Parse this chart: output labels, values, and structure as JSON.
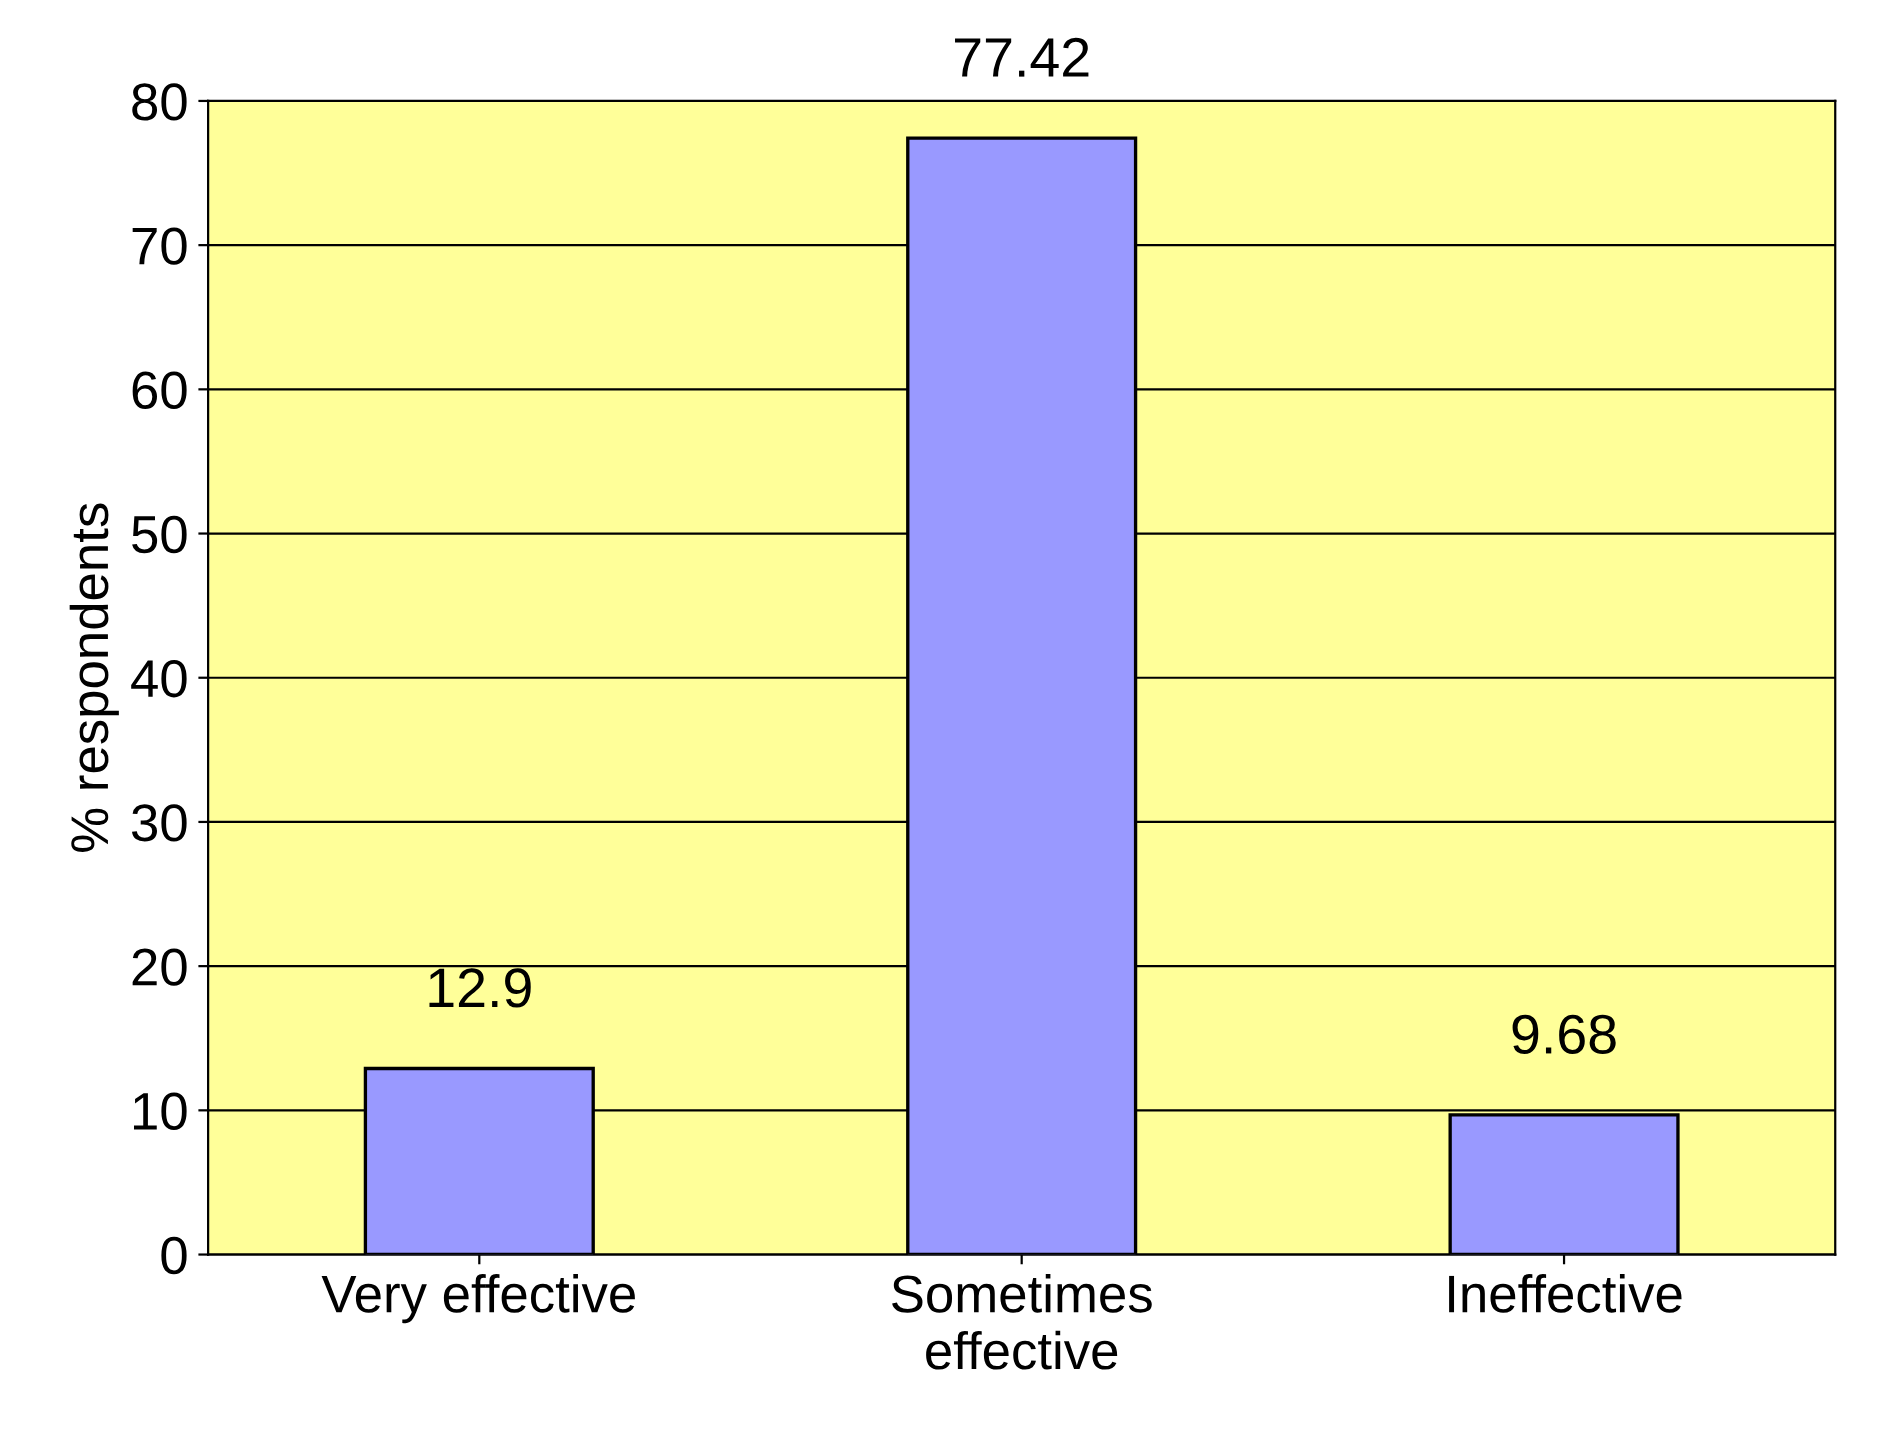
{
  "chart_data": {
    "type": "bar",
    "ylabel": "% respondents",
    "categories": [
      "Very effective",
      "Sometimes\neffective",
      "Ineffective"
    ],
    "values": [
      12.9,
      77.42,
      9.68
    ],
    "color": "#9999ff",
    "ylim": [
      0,
      80
    ],
    "yticks": [
      0,
      10,
      20,
      30,
      40,
      50,
      60,
      70,
      80
    ],
    "grid": "y",
    "data_labels": true
  }
}
